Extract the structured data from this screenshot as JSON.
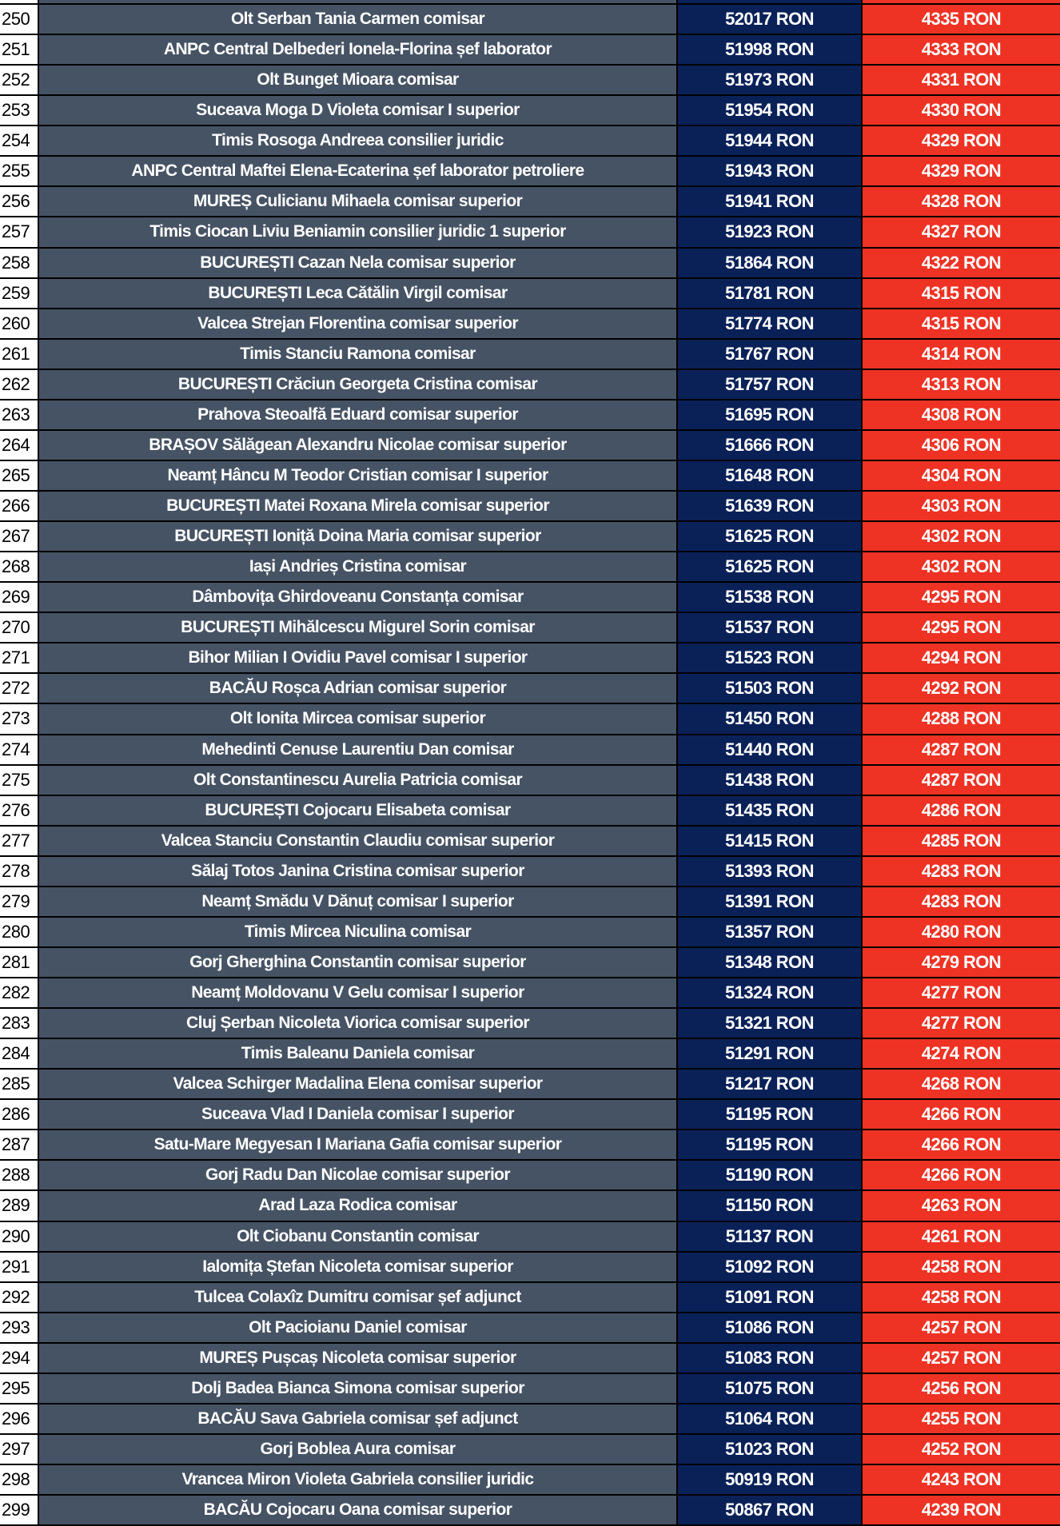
{
  "colors": {
    "name_bg": "#465364",
    "annual_bg": "#0a2158",
    "monthly_bg": "#ee3224",
    "number_bg": "#ffffff"
  },
  "rows": [
    {
      "n": "250",
      "name": "Olt Serban Tania Carmen comisar",
      "annual": "52017 RON",
      "monthly": "4335 RON"
    },
    {
      "n": "251",
      "name": "ANPC Central Delbederi Ionela-Florina șef laborator",
      "annual": "51998 RON",
      "monthly": "4333 RON"
    },
    {
      "n": "252",
      "name": "Olt Bunget Mioara comisar",
      "annual": "51973 RON",
      "monthly": "4331 RON"
    },
    {
      "n": "253",
      "name": "Suceava Moga D Violeta comisar I superior",
      "annual": "51954 RON",
      "monthly": "4330 RON"
    },
    {
      "n": "254",
      "name": "Timis Rosoga Andreea consilier juridic",
      "annual": "51944 RON",
      "monthly": "4329 RON"
    },
    {
      "n": "255",
      "name": "ANPC Central Maftei Elena-Ecaterina șef laborator petroliere",
      "annual": "51943 RON",
      "monthly": "4329 RON"
    },
    {
      "n": "256",
      "name": "MUREȘ Culicianu Mihaela comisar superior",
      "annual": "51941 RON",
      "monthly": "4328 RON"
    },
    {
      "n": "257",
      "name": "Timis Ciocan Liviu Beniamin consilier juridic 1 superior",
      "annual": "51923 RON",
      "monthly": "4327 RON"
    },
    {
      "n": "258",
      "name": "BUCUREȘTI Cazan Nela comisar superior",
      "annual": "51864 RON",
      "monthly": "4322 RON"
    },
    {
      "n": "259",
      "name": "BUCUREȘTI Leca Cătălin Virgil comisar",
      "annual": "51781 RON",
      "monthly": "4315 RON"
    },
    {
      "n": "260",
      "name": "Valcea Strejan Florentina comisar superior",
      "annual": "51774 RON",
      "monthly": "4315 RON"
    },
    {
      "n": "261",
      "name": "Timis Stanciu Ramona comisar",
      "annual": "51767 RON",
      "monthly": "4314 RON"
    },
    {
      "n": "262",
      "name": "BUCUREȘTI Crăciun Georgeta Cristina comisar",
      "annual": "51757 RON",
      "monthly": "4313 RON"
    },
    {
      "n": "263",
      "name": "Prahova Steoalfă Eduard comisar superior",
      "annual": "51695 RON",
      "monthly": "4308 RON"
    },
    {
      "n": "264",
      "name": "BRAȘOV Sălăgean Alexandru Nicolae comisar superior",
      "annual": "51666 RON",
      "monthly": "4306 RON"
    },
    {
      "n": "265",
      "name": "Neamț Hâncu M Teodor Cristian comisar I superior",
      "annual": "51648 RON",
      "monthly": "4304 RON"
    },
    {
      "n": "266",
      "name": "BUCUREȘTI Matei Roxana Mirela comisar superior",
      "annual": "51639 RON",
      "monthly": "4303 RON"
    },
    {
      "n": "267",
      "name": "BUCUREȘTI Ioniță Doina Maria comisar superior",
      "annual": "51625 RON",
      "monthly": "4302 RON"
    },
    {
      "n": "268",
      "name": "Iași Andrieș Cristina comisar",
      "annual": "51625 RON",
      "monthly": "4302 RON"
    },
    {
      "n": "269",
      "name": "Dâmbovița Ghirdoveanu Constanța comisar",
      "annual": "51538 RON",
      "monthly": "4295 RON"
    },
    {
      "n": "270",
      "name": "BUCUREȘTI Mihălcescu Migurel Sorin comisar",
      "annual": "51537 RON",
      "monthly": "4295 RON"
    },
    {
      "n": "271",
      "name": "Bihor Milian I Ovidiu Pavel comisar I superior",
      "annual": "51523 RON",
      "monthly": "4294 RON"
    },
    {
      "n": "272",
      "name": "BACĂU Roșca Adrian comisar superior",
      "annual": "51503 RON",
      "monthly": "4292 RON"
    },
    {
      "n": "273",
      "name": "Olt Ionita Mircea comisar superior",
      "annual": "51450 RON",
      "monthly": "4288 RON"
    },
    {
      "n": "274",
      "name": "Mehedinti Cenuse Laurentiu Dan comisar",
      "annual": "51440 RON",
      "monthly": "4287 RON"
    },
    {
      "n": "275",
      "name": "Olt Constantinescu Aurelia Patricia comisar",
      "annual": "51438 RON",
      "monthly": "4287 RON"
    },
    {
      "n": "276",
      "name": "BUCUREȘTI Cojocaru Elisabeta comisar",
      "annual": "51435 RON",
      "monthly": "4286 RON"
    },
    {
      "n": "277",
      "name": "Valcea Stanciu Constantin Claudiu comisar superior",
      "annual": "51415 RON",
      "monthly": "4285 RON"
    },
    {
      "n": "278",
      "name": "Sălaj Totos Janina Cristina comisar superior",
      "annual": "51393 RON",
      "monthly": "4283 RON"
    },
    {
      "n": "279",
      "name": "Neamț Smădu V Dănuț comisar I superior",
      "annual": "51391 RON",
      "monthly": "4283 RON"
    },
    {
      "n": "280",
      "name": "Timis Mircea Niculina comisar",
      "annual": "51357 RON",
      "monthly": "4280 RON"
    },
    {
      "n": "281",
      "name": "Gorj Gherghina Constantin comisar superior",
      "annual": "51348 RON",
      "monthly": "4279 RON"
    },
    {
      "n": "282",
      "name": "Neamț Moldovanu V Gelu comisar I superior",
      "annual": "51324 RON",
      "monthly": "4277 RON"
    },
    {
      "n": "283",
      "name": "Cluj Șerban Nicoleta Viorica comisar superior",
      "annual": "51321 RON",
      "monthly": "4277 RON"
    },
    {
      "n": "284",
      "name": "Timis Baleanu Daniela comisar",
      "annual": "51291 RON",
      "monthly": "4274 RON"
    },
    {
      "n": "285",
      "name": "Valcea Schirger Madalina Elena comisar superior",
      "annual": "51217 RON",
      "monthly": "4268 RON"
    },
    {
      "n": "286",
      "name": "Suceava Vlad I Daniela comisar I superior",
      "annual": "51195 RON",
      "monthly": "4266 RON"
    },
    {
      "n": "287",
      "name": "Satu-Mare Megyesan I Mariana Gafia comisar superior",
      "annual": "51195 RON",
      "monthly": "4266 RON"
    },
    {
      "n": "288",
      "name": "Gorj Radu Dan Nicolae comisar superior",
      "annual": "51190 RON",
      "monthly": "4266 RON"
    },
    {
      "n": "289",
      "name": "Arad Laza Rodica comisar",
      "annual": "51150 RON",
      "monthly": "4263 RON"
    },
    {
      "n": "290",
      "name": "Olt Ciobanu Constantin comisar",
      "annual": "51137 RON",
      "monthly": "4261 RON"
    },
    {
      "n": "291",
      "name": "Ialomița Ștefan Nicoleta comisar superior",
      "annual": "51092 RON",
      "monthly": "4258 RON"
    },
    {
      "n": "292",
      "name": "Tulcea Colaxîz Dumitru comisar șef adjunct",
      "annual": "51091 RON",
      "monthly": "4258 RON"
    },
    {
      "n": "293",
      "name": "Olt Pacioianu Daniel comisar",
      "annual": "51086 RON",
      "monthly": "4257 RON"
    },
    {
      "n": "294",
      "name": "MUREȘ Pușcaș Nicoleta comisar superior",
      "annual": "51083 RON",
      "monthly": "4257 RON"
    },
    {
      "n": "295",
      "name": "Dolj Badea Bianca Simona comisar superior",
      "annual": "51075 RON",
      "monthly": "4256 RON"
    },
    {
      "n": "296",
      "name": "BACĂU Sava Gabriela comisar șef adjunct",
      "annual": "51064 RON",
      "monthly": "4255 RON"
    },
    {
      "n": "297",
      "name": "Gorj Boblea Aura comisar",
      "annual": "51023 RON",
      "monthly": "4252 RON"
    },
    {
      "n": "298",
      "name": "Vrancea Miron Violeta Gabriela consilier juridic",
      "annual": "50919 RON",
      "monthly": "4243 RON"
    },
    {
      "n": "299",
      "name": "BACĂU Cojocaru Oana comisar superior",
      "annual": "50867 RON",
      "monthly": "4239 RON"
    }
  ]
}
